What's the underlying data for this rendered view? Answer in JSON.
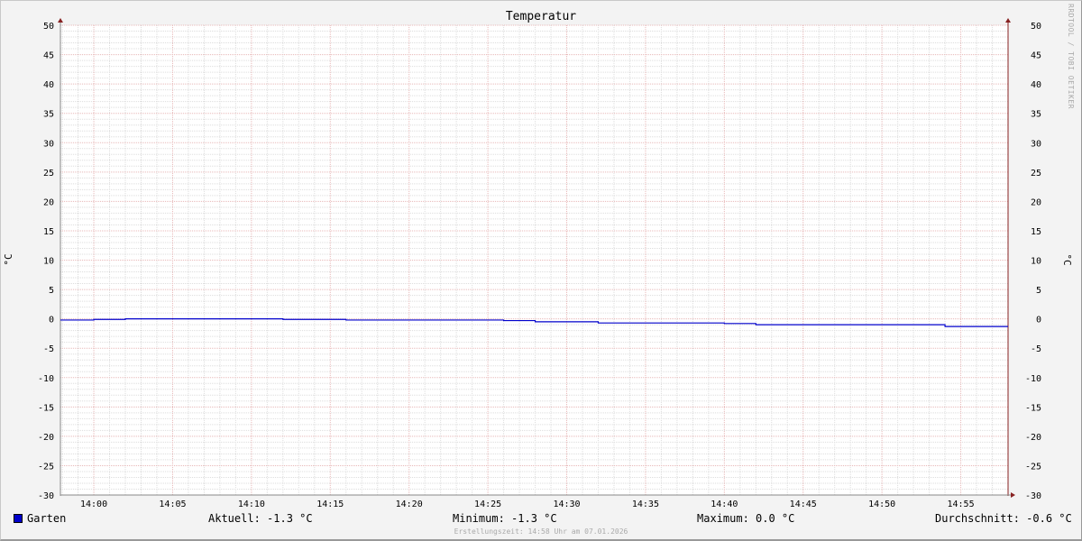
{
  "chart_data": {
    "type": "line",
    "title": "Temperatur",
    "ylabel": "°C",
    "ylabel_right": "°C",
    "ylim": [
      -30,
      50
    ],
    "yticks": [
      50,
      45,
      40,
      35,
      30,
      25,
      20,
      15,
      10,
      5,
      0,
      -5,
      -10,
      -15,
      -20,
      -25,
      -30
    ],
    "xlim": [
      "13:58",
      "14:58"
    ],
    "xticks": [
      "14:00",
      "14:05",
      "14:10",
      "14:15",
      "14:20",
      "14:25",
      "14:30",
      "14:35",
      "14:40",
      "14:45",
      "14:50",
      "14:55"
    ],
    "grid": true,
    "series": [
      {
        "name": "Garten",
        "color": "#0000cc",
        "step": true,
        "x": [
          "13:58",
          "14:00",
          "14:02",
          "14:12",
          "14:16",
          "14:26",
          "14:28",
          "14:32",
          "14:40",
          "14:42",
          "14:54",
          "14:58"
        ],
        "values": [
          -0.2,
          -0.1,
          0.0,
          -0.1,
          -0.2,
          -0.3,
          -0.5,
          -0.7,
          -0.8,
          -1.0,
          -1.3,
          -1.3
        ]
      }
    ],
    "legend": {
      "series_name": "Garten",
      "current": "Aktuell: -1.3 °C",
      "minimum": "Minimum: -1.3 °C",
      "maximum": "Maximum: 0.0 °C",
      "average": "Durchschnitt: -0.6 °C"
    },
    "watermark": "RRDTOOL / TOBI OETIKER",
    "created": "Erstellungszeit: 14:58 Uhr am 07.01.2026"
  }
}
